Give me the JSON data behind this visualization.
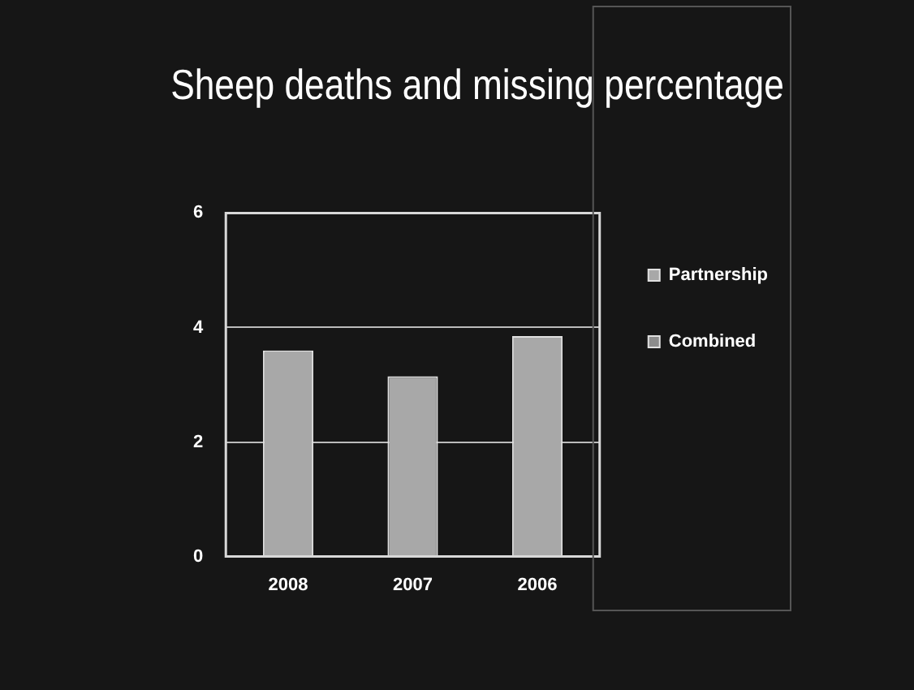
{
  "chart_data": {
    "type": "bar",
    "title": "Sheep deaths and missing percentage",
    "categories": [
      "2008",
      "2007",
      "2006"
    ],
    "series": [
      {
        "name": "Partnership",
        "color": "#a8a8a8",
        "values": [
          3.6,
          3.15,
          3.85
        ]
      },
      {
        "name": "Combined",
        "color": "#8c8c8c",
        "values": [
          null,
          null,
          null
        ]
      }
    ],
    "ylim": [
      0,
      6
    ],
    "yticks": [
      0,
      2,
      4,
      6
    ],
    "grid": "y",
    "legend": "right"
  }
}
